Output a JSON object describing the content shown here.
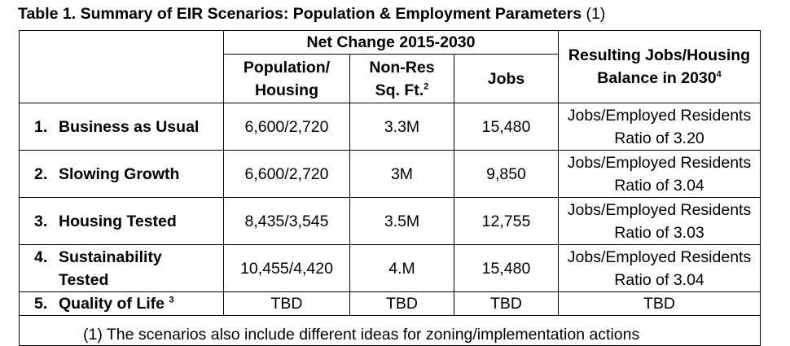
{
  "title": {
    "bold_text": "Table 1.  Summary of EIR Scenarios:  Population & Employment Parameters",
    "normal_suffix": " (1)"
  },
  "header": {
    "net_change": "Net Change 2015-2030",
    "population_line1": "Population/",
    "population_line2": "Housing",
    "nonres_line1": "Non-Res",
    "nonres_line2": "Sq. Ft.",
    "nonres_sup": "2",
    "jobs": "Jobs",
    "resulting_line1": "Resulting Jobs/Housing",
    "resulting_line2": "Balance in 2030",
    "resulting_sup": "4"
  },
  "rows": [
    {
      "num": "1.",
      "label_line1": "Business as Usual",
      "label_line2": "",
      "label_sup": "",
      "pop_housing": "6,600/2,720",
      "nonres": "3.3M",
      "jobs": "15,480",
      "balance_line1": "Jobs/Employed Residents",
      "balance_line2": "Ratio of 3.20"
    },
    {
      "num": "2.",
      "label_line1": "Slowing Growth",
      "label_line2": "",
      "label_sup": "",
      "pop_housing": "6,600/2,720",
      "nonres": "3M",
      "jobs": "9,850",
      "balance_line1": "Jobs/Employed Residents",
      "balance_line2": "Ratio of 3.04"
    },
    {
      "num": "3.",
      "label_line1": "Housing Tested",
      "label_line2": "",
      "label_sup": "",
      "pop_housing": "8,435/3,545",
      "nonres": "3.5M",
      "jobs": "12,755",
      "balance_line1": "Jobs/Employed Residents",
      "balance_line2": "Ratio of 3.03"
    },
    {
      "num": "4.",
      "label_line1": "Sustainability",
      "label_line2": "Tested",
      "label_sup": "",
      "pop_housing": "10,455/4,420",
      "nonres": "4.M",
      "jobs": "15,480",
      "balance_line1": "Jobs/Employed Residents",
      "balance_line2": "Ratio of 3.04"
    },
    {
      "num": "5.",
      "label_line1": "Quality of Life",
      "label_line2": "",
      "label_sup": "3",
      "pop_housing": "TBD",
      "nonres": "TBD",
      "jobs": "TBD",
      "balance_line1": "TBD",
      "balance_line2": ""
    }
  ],
  "footnote": "(1) The scenarios also include different ideas for zoning/implementation actions"
}
